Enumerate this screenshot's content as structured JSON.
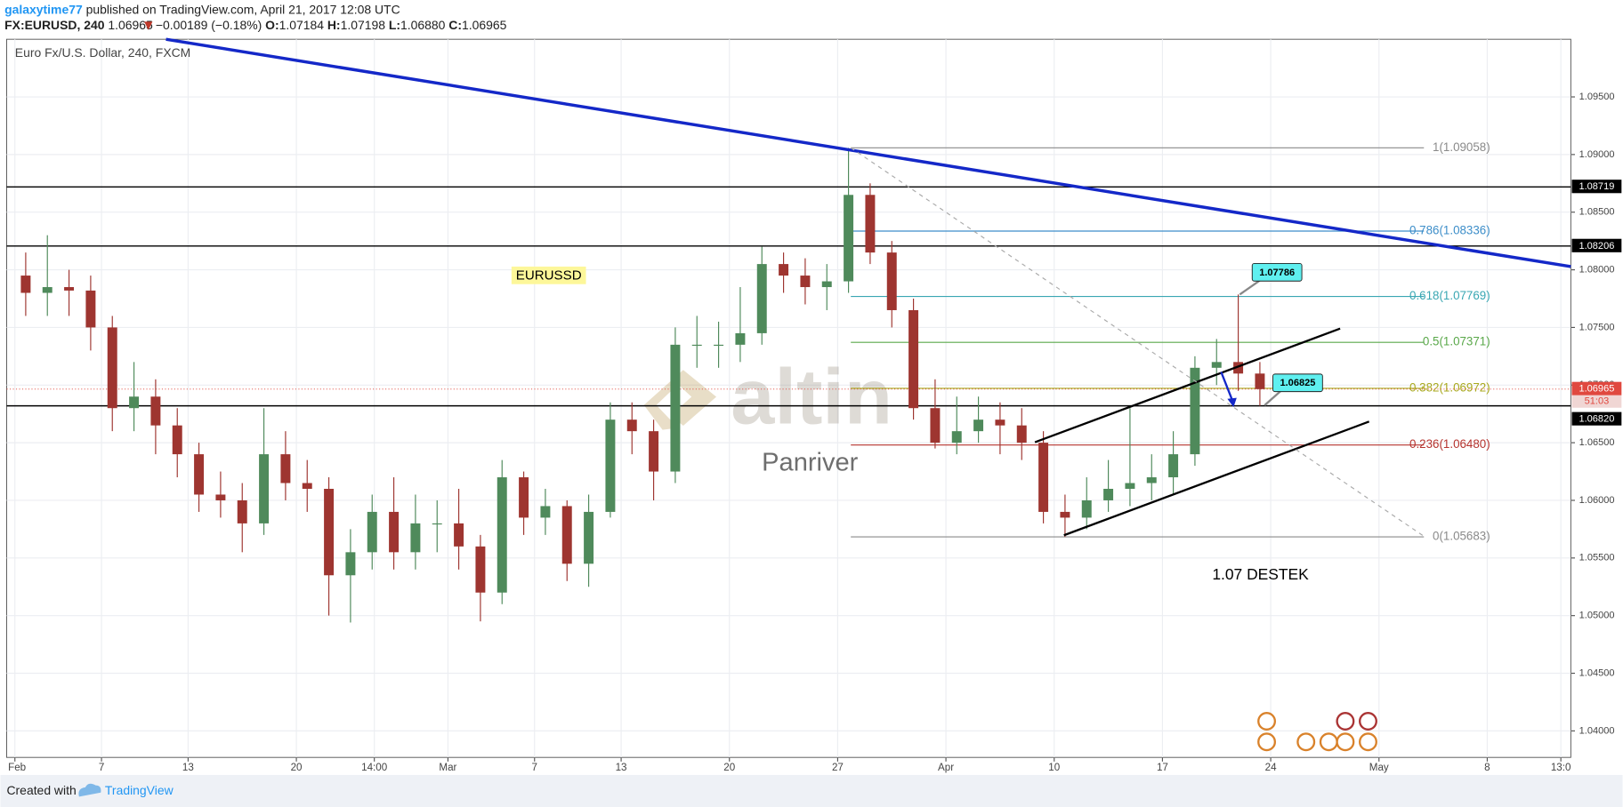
{
  "header": {
    "author": "galaxytime77",
    "published": "published on TradingView.com, April 21, 2017 12:08 UTC",
    "symbol": "FX:EURUSD, 240",
    "last": "1.06965",
    "change": "−0.00189 (−0.18%)",
    "o_label": "O:",
    "open": "1.07184",
    "h_label": "H:",
    "high": "1.07198",
    "l_label": "L:",
    "low": "1.06880",
    "c_label": "C:",
    "close": "1.06965"
  },
  "chart_data": {
    "type": "candlestick",
    "title": "Euro Fx/U.S. Dollar, 240, FXCM",
    "open": [
      1.0795,
      1.078,
      1.0785,
      1.0782,
      1.075,
      1.068,
      1.069,
      1.0665,
      1.064,
      1.0605,
      1.06,
      1.058,
      1.064,
      1.0615,
      1.061,
      1.0535,
      1.0555,
      1.059,
      1.0555,
      1.058,
      1.058,
      1.056,
      1.052,
      1.062,
      1.0585,
      1.0595,
      1.0545,
      1.059,
      1.067,
      1.066,
      1.0625,
      1.0735,
      1.0735,
      1.0735,
      1.0745,
      1.0805,
      1.0795,
      1.0785,
      1.079,
      1.0865,
      1.0815,
      1.0765,
      1.068,
      1.065,
      1.066,
      1.067,
      1.0665,
      1.065,
      1.059,
      1.0585,
      1.06,
      1.061,
      1.0615,
      1.062,
      1.064,
      1.0715,
      1.072,
      1.071
    ],
    "high": [
      1.0815,
      1.083,
      1.08,
      1.0795,
      1.076,
      1.072,
      1.0705,
      1.068,
      1.065,
      1.0625,
      1.0615,
      1.068,
      1.066,
      1.0635,
      1.062,
      1.0575,
      1.0605,
      1.062,
      1.0605,
      1.06,
      1.061,
      1.057,
      1.0635,
      1.0625,
      1.061,
      1.06,
      1.0605,
      1.0685,
      1.0685,
      1.067,
      1.075,
      1.076,
      1.0755,
      1.0785,
      1.082,
      1.0815,
      1.081,
      1.0805,
      1.09058,
      1.0875,
      1.0825,
      1.0775,
      1.0705,
      1.069,
      1.069,
      1.0685,
      1.068,
      1.066,
      1.0605,
      1.062,
      1.0635,
      1.068,
      1.064,
      1.066,
      1.0725,
      1.074,
      1.07786,
      1.072
    ],
    "low": [
      1.076,
      1.076,
      1.076,
      1.073,
      1.066,
      1.066,
      1.064,
      1.062,
      1.059,
      1.0585,
      1.0555,
      1.057,
      1.06,
      1.059,
      1.05,
      1.0494,
      1.054,
      1.054,
      1.054,
      1.0555,
      1.054,
      1.0495,
      1.051,
      1.057,
      1.057,
      1.053,
      1.0525,
      1.0585,
      1.064,
      1.06,
      1.0615,
      1.0715,
      1.0715,
      1.072,
      1.0735,
      1.078,
      1.077,
      1.0765,
      1.078,
      1.0805,
      1.075,
      1.067,
      1.0645,
      1.064,
      1.065,
      1.064,
      1.0635,
      1.058,
      1.05683,
      1.0575,
      1.059,
      1.0595,
      1.06,
      1.0605,
      1.063,
      1.07,
      1.0695,
      1.0682
    ],
    "close": [
      1.078,
      1.0785,
      1.0782,
      1.075,
      1.068,
      1.069,
      1.0665,
      1.064,
      1.0605,
      1.06,
      1.058,
      1.064,
      1.0615,
      1.061,
      1.0535,
      1.0555,
      1.059,
      1.0555,
      1.058,
      1.058,
      1.056,
      1.052,
      1.062,
      1.0585,
      1.0595,
      1.0545,
      1.059,
      1.067,
      1.066,
      1.0625,
      1.0735,
      1.0735,
      1.0735,
      1.0745,
      1.0805,
      1.0795,
      1.0785,
      1.079,
      1.0865,
      1.0815,
      1.0765,
      1.068,
      1.065,
      1.066,
      1.067,
      1.0665,
      1.065,
      1.059,
      1.0585,
      1.06,
      1.061,
      1.0615,
      1.062,
      1.064,
      1.0715,
      1.072,
      1.071,
      1.06965
    ],
    "up_color": "#4f8a5b",
    "down_color": "#9e3530",
    "ylim": [
      1.0377,
      1.1
    ],
    "yticks": [
      {
        "value": 1.04,
        "label": "1.04000"
      },
      {
        "value": 1.045,
        "label": "1.04500"
      },
      {
        "value": 1.05,
        "label": "1.05000"
      },
      {
        "value": 1.055,
        "label": "1.05500"
      },
      {
        "value": 1.06,
        "label": "1.06000"
      },
      {
        "value": 1.065,
        "label": "1.06500"
      },
      {
        "value": 1.07,
        "label": "1.07000"
      },
      {
        "value": 1.075,
        "label": "1.07500"
      },
      {
        "value": 1.08,
        "label": "1.08000"
      },
      {
        "value": 1.085,
        "label": "1.08500"
      },
      {
        "value": 1.09,
        "label": "1.09000"
      },
      {
        "value": 1.095,
        "label": "1.09500"
      }
    ],
    "xlim": [
      -0.38,
      71.86
    ],
    "xticks": [
      {
        "value": 0,
        "label": "Feb"
      },
      {
        "value": 4,
        "label": "7"
      },
      {
        "value": 8,
        "label": "13"
      },
      {
        "value": 13,
        "label": "20"
      },
      {
        "value": 16.6,
        "label": "14:00"
      },
      {
        "value": 20,
        "label": "Mar"
      },
      {
        "value": 24,
        "label": "7"
      },
      {
        "value": 28,
        "label": "13"
      },
      {
        "value": 33,
        "label": "20"
      },
      {
        "value": 38,
        "label": "27"
      },
      {
        "value": 43,
        "label": "Apr"
      },
      {
        "value": 48,
        "label": "10"
      },
      {
        "value": 53,
        "label": "17"
      },
      {
        "value": 58,
        "label": "24"
      },
      {
        "value": 63,
        "label": "May"
      },
      {
        "value": 68,
        "label": "8"
      },
      {
        "value": 71.4,
        "label": "13:0"
      }
    ],
    "grid": true,
    "levels": [
      {
        "value": 1.08719,
        "label": "1.08719"
      },
      {
        "value": 1.08206,
        "label": "1.08206"
      },
      {
        "value": 1.0682,
        "label": "1.06820"
      }
    ],
    "last": {
      "value": 1.06965,
      "label": "1.06965",
      "countdown": "51:03",
      "color": "#e0483f"
    },
    "fib": [
      {
        "value": 1.09058,
        "label": "1(1.09058)",
        "color": "#8a8a8a"
      },
      {
        "value": 1.08336,
        "label": "0.786(1.08336)",
        "color": "#3d8ec9"
      },
      {
        "value": 1.07769,
        "label": "0.618(1.07769)",
        "color": "#3aa7b3"
      },
      {
        "value": 1.07371,
        "label": "0.5(1.07371)",
        "color": "#5aa84a"
      },
      {
        "value": 1.06972,
        "label": "0.382(1.06972)",
        "color": "#a9a91e"
      },
      {
        "value": 1.0648,
        "label": "0.236(1.06480)",
        "color": "#b5332e"
      },
      {
        "value": 1.05683,
        "label": "0(1.05683)",
        "color": "#8a8a8a"
      }
    ],
    "callouts": [
      {
        "value": 1.07786,
        "label": "1.07786"
      },
      {
        "value": 1.06825,
        "label": "1.06825"
      }
    ],
    "annotations": [
      "EURUSSD",
      "1.07 DESTEK"
    ],
    "watermark": [
      "altin",
      "Panriver"
    ]
  },
  "footer": {
    "created": "Created with",
    "brand": "TradingView"
  }
}
